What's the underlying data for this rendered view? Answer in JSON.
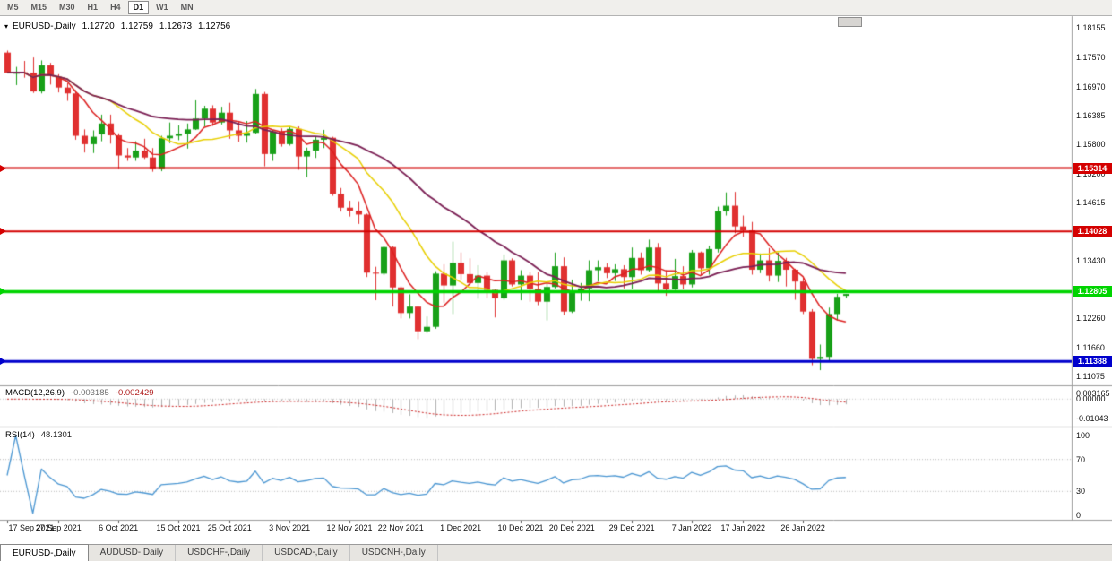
{
  "icons": {
    "chart_dropdown": "▾"
  },
  "toolbar": {
    "timeframes": [
      {
        "label": "M5",
        "active": false
      },
      {
        "label": "M15",
        "active": false
      },
      {
        "label": "M30",
        "active": false
      },
      {
        "label": "H1",
        "active": false
      },
      {
        "label": "H4",
        "active": false
      },
      {
        "label": "D1",
        "active": true
      },
      {
        "label": "W1",
        "active": false
      },
      {
        "label": "MN",
        "active": false
      }
    ]
  },
  "chart": {
    "title": {
      "symbol": "EURUSD-,Daily",
      "open": "1.12720",
      "high": "1.12759",
      "low": "1.12673",
      "close": "1.12756"
    }
  },
  "chart_data": {
    "type": "candlestick",
    "symbol": "EURUSD",
    "timeframe": "Daily",
    "current_bar": {
      "open": 1.1272,
      "high": 1.12759,
      "low": 1.12673,
      "close": 1.12756
    },
    "price_range": [
      1.1092,
      1.184
    ],
    "price_axis_ticks": [
      "1.18155",
      "1.17570",
      "1.16970",
      "1.16385",
      "1.15800",
      "1.15200",
      "1.14615",
      "1.13430",
      "1.12260",
      "1.11660",
      "1.11075"
    ],
    "x_labels": [
      {
        "i": 0,
        "label": "17 Sep 2021"
      },
      {
        "i": 6,
        "label": "27 Sep 2021"
      },
      {
        "i": 13,
        "label": "6 Oct 2021"
      },
      {
        "i": 20,
        "label": "15 Oct 2021"
      },
      {
        "i": 26,
        "label": "25 Oct 2021"
      },
      {
        "i": 33,
        "label": "3 Nov 2021"
      },
      {
        "i": 40,
        "label": "12 Nov 2021"
      },
      {
        "i": 46,
        "label": "22 Nov 2021"
      },
      {
        "i": 53,
        "label": "1 Dec 2021"
      },
      {
        "i": 60,
        "label": "10 Dec 2021"
      },
      {
        "i": 66,
        "label": "20 Dec 2021"
      },
      {
        "i": 73,
        "label": "29 Dec 2021"
      },
      {
        "i": 80,
        "label": "7 Jan 2022"
      },
      {
        "i": 86,
        "label": "17 Jan 2022"
      },
      {
        "i": 93,
        "label": "26 Jan 2022"
      }
    ],
    "bull_color": "#18a018",
    "bear_color": "#e03030",
    "candles": [
      [
        "2021-09-17",
        1.1766,
        1.177,
        1.1724,
        1.1725
      ],
      [
        "2021-09-20",
        1.1723,
        1.1737,
        1.17,
        1.1726
      ],
      [
        "2021-09-21",
        1.1726,
        1.1749,
        1.1715,
        1.1725
      ],
      [
        "2021-09-22",
        1.1725,
        1.1756,
        1.1684,
        1.1687
      ],
      [
        "2021-09-23",
        1.1687,
        1.175,
        1.1683,
        1.174
      ],
      [
        "2021-09-24",
        1.174,
        1.1745,
        1.1701,
        1.1719
      ],
      [
        "2021-09-27",
        1.1717,
        1.1722,
        1.1685,
        1.1695
      ],
      [
        "2021-09-28",
        1.1695,
        1.1704,
        1.1668,
        1.1683
      ],
      [
        "2021-09-29",
        1.1683,
        1.169,
        1.1589,
        1.1597
      ],
      [
        "2021-09-30",
        1.1597,
        1.161,
        1.1563,
        1.158
      ],
      [
        "2021-10-01",
        1.158,
        1.1608,
        1.1562,
        1.1595
      ],
      [
        "2021-10-04",
        1.16,
        1.164,
        1.1586,
        1.1622
      ],
      [
        "2021-10-05",
        1.1622,
        1.164,
        1.1581,
        1.1598
      ],
      [
        "2021-10-06",
        1.1598,
        1.1602,
        1.1529,
        1.1557
      ],
      [
        "2021-10-07",
        1.1557,
        1.1572,
        1.1546,
        1.1553
      ],
      [
        "2021-10-08",
        1.1553,
        1.1586,
        1.1546,
        1.1567
      ],
      [
        "2021-10-11",
        1.1567,
        1.1591,
        1.155,
        1.1553
      ],
      [
        "2021-10-12",
        1.1553,
        1.1572,
        1.1524,
        1.1529
      ],
      [
        "2021-10-13",
        1.1529,
        1.1597,
        1.1525,
        1.1592
      ],
      [
        "2021-10-14",
        1.1592,
        1.1624,
        1.1582,
        1.1597
      ],
      [
        "2021-10-15",
        1.1597,
        1.1618,
        1.1588,
        1.1601
      ],
      [
        "2021-10-18",
        1.1601,
        1.1622,
        1.1571,
        1.161
      ],
      [
        "2021-10-19",
        1.161,
        1.1669,
        1.1609,
        1.1632
      ],
      [
        "2021-10-20",
        1.1632,
        1.1658,
        1.1616,
        1.1652
      ],
      [
        "2021-10-21",
        1.1652,
        1.1659,
        1.1617,
        1.1624
      ],
      [
        "2021-10-22",
        1.1624,
        1.1656,
        1.162,
        1.1644
      ],
      [
        "2021-10-25",
        1.1644,
        1.1664,
        1.1591,
        1.1608
      ],
      [
        "2021-10-26",
        1.1608,
        1.1626,
        1.1585,
        1.1597
      ],
      [
        "2021-10-27",
        1.1597,
        1.1627,
        1.1583,
        1.1603
      ],
      [
        "2021-10-28",
        1.1603,
        1.1692,
        1.1601,
        1.1682
      ],
      [
        "2021-10-29",
        1.1682,
        1.1686,
        1.1535,
        1.156
      ],
      [
        "2021-11-01",
        1.156,
        1.1609,
        1.1546,
        1.1606
      ],
      [
        "2021-11-02",
        1.1606,
        1.1612,
        1.1575,
        1.158
      ],
      [
        "2021-11-03",
        1.158,
        1.1616,
        1.1577,
        1.1611
      ],
      [
        "2021-11-04",
        1.1611,
        1.1616,
        1.1528,
        1.1555
      ],
      [
        "2021-11-05",
        1.1555,
        1.1573,
        1.1513,
        1.1567
      ],
      [
        "2021-11-08",
        1.1567,
        1.1595,
        1.1552,
        1.1589
      ],
      [
        "2021-11-09",
        1.1589,
        1.1609,
        1.1572,
        1.1593
      ],
      [
        "2021-11-10",
        1.1593,
        1.1595,
        1.1475,
        1.1479
      ],
      [
        "2021-11-11",
        1.1479,
        1.1491,
        1.1443,
        1.1451
      ],
      [
        "2021-11-12",
        1.1451,
        1.1465,
        1.1433,
        1.1445
      ],
      [
        "2021-11-15",
        1.1445,
        1.1464,
        1.1418,
        1.1437
      ],
      [
        "2021-11-16",
        1.1437,
        1.1439,
        1.131,
        1.1319
      ],
      [
        "2021-11-17",
        1.1319,
        1.1331,
        1.1263,
        1.1317
      ],
      [
        "2021-11-18",
        1.1317,
        1.1374,
        1.1314,
        1.1371
      ],
      [
        "2021-11-19",
        1.1371,
        1.1373,
        1.125,
        1.1289
      ],
      [
        "2021-11-22",
        1.1289,
        1.1291,
        1.1226,
        1.1237
      ],
      [
        "2021-11-23",
        1.1237,
        1.1275,
        1.1226,
        1.125
      ],
      [
        "2021-11-24",
        1.125,
        1.1252,
        1.1184,
        1.12
      ],
      [
        "2021-11-25",
        1.12,
        1.123,
        1.1196,
        1.1209
      ],
      [
        "2021-11-26",
        1.1209,
        1.1322,
        1.1205,
        1.1317
      ],
      [
        "2021-11-29",
        1.1317,
        1.1336,
        1.1258,
        1.1293
      ],
      [
        "2021-11-30",
        1.1293,
        1.1382,
        1.1235,
        1.1339
      ],
      [
        "2021-12-01",
        1.1339,
        1.136,
        1.1305,
        1.1316
      ],
      [
        "2021-12-02",
        1.1316,
        1.1348,
        1.1293,
        1.1298
      ],
      [
        "2021-12-03",
        1.1298,
        1.1334,
        1.1266,
        1.1313
      ],
      [
        "2021-12-06",
        1.1313,
        1.132,
        1.1267,
        1.1284
      ],
      [
        "2021-12-07",
        1.1284,
        1.1285,
        1.1228,
        1.1267
      ],
      [
        "2021-12-08",
        1.1267,
        1.1356,
        1.1264,
        1.1344
      ],
      [
        "2021-12-09",
        1.1344,
        1.1348,
        1.1291,
        1.1295
      ],
      [
        "2021-12-10",
        1.1295,
        1.1324,
        1.1263,
        1.1313
      ],
      [
        "2021-12-13",
        1.1313,
        1.132,
        1.126,
        1.1286
      ],
      [
        "2021-12-14",
        1.1286,
        1.132,
        1.1253,
        1.126
      ],
      [
        "2021-12-15",
        1.126,
        1.1297,
        1.1222,
        1.129
      ],
      [
        "2021-12-16",
        1.129,
        1.136,
        1.1287,
        1.1332
      ],
      [
        "2021-12-17",
        1.1332,
        1.135,
        1.1233,
        1.124
      ],
      [
        "2021-12-20",
        1.124,
        1.1305,
        1.1237,
        1.1278
      ],
      [
        "2021-12-21",
        1.1278,
        1.1298,
        1.1262,
        1.1287
      ],
      [
        "2021-12-22",
        1.1287,
        1.1344,
        1.1261,
        1.1324
      ],
      [
        "2021-12-23",
        1.1324,
        1.1344,
        1.1301,
        1.133
      ],
      [
        "2021-12-24",
        1.133,
        1.1338,
        1.1308,
        1.1318
      ],
      [
        "2021-12-27",
        1.1318,
        1.1336,
        1.1302,
        1.1326
      ],
      [
        "2021-12-28",
        1.1326,
        1.1334,
        1.1287,
        1.131
      ],
      [
        "2021-12-29",
        1.131,
        1.137,
        1.1286,
        1.1349
      ],
      [
        "2021-12-30",
        1.1349,
        1.136,
        1.1315,
        1.1324
      ],
      [
        "2021-12-31",
        1.1324,
        1.1386,
        1.1321,
        1.137
      ],
      [
        "2022-01-03",
        1.137,
        1.1379,
        1.1279,
        1.1297
      ],
      [
        "2022-01-04",
        1.1297,
        1.1324,
        1.1272,
        1.1285
      ],
      [
        "2022-01-05",
        1.1285,
        1.1347,
        1.1284,
        1.1312
      ],
      [
        "2022-01-06",
        1.1312,
        1.1332,
        1.1285,
        1.1295
      ],
      [
        "2022-01-07",
        1.1295,
        1.1365,
        1.1289,
        1.136
      ],
      [
        "2022-01-10",
        1.136,
        1.1362,
        1.1313,
        1.1328
      ],
      [
        "2022-01-11",
        1.1328,
        1.1374,
        1.1315,
        1.1367
      ],
      [
        "2022-01-12",
        1.1367,
        1.1453,
        1.136,
        1.1444
      ],
      [
        "2022-01-13",
        1.1444,
        1.1482,
        1.1435,
        1.1455
      ],
      [
        "2022-01-14",
        1.1455,
        1.1483,
        1.1399,
        1.1413
      ],
      [
        "2022-01-17",
        1.1413,
        1.1435,
        1.1392,
        1.1405
      ],
      [
        "2022-01-18",
        1.1405,
        1.1422,
        1.1315,
        1.1325
      ],
      [
        "2022-01-19",
        1.1325,
        1.1358,
        1.1318,
        1.1344
      ],
      [
        "2022-01-20",
        1.1344,
        1.1369,
        1.1301,
        1.1313
      ],
      [
        "2022-01-21",
        1.1313,
        1.136,
        1.13,
        1.1343
      ],
      [
        "2022-01-24",
        1.1343,
        1.1349,
        1.1291,
        1.1325
      ],
      [
        "2022-01-25",
        1.1325,
        1.1327,
        1.1264,
        1.1301
      ],
      [
        "2022-01-26",
        1.1301,
        1.131,
        1.1235,
        1.124
      ],
      [
        "2022-01-27",
        1.124,
        1.1245,
        1.1131,
        1.1144
      ],
      [
        "2022-01-28",
        1.1144,
        1.1173,
        1.1121,
        1.1148
      ],
      [
        "2022-01-31",
        1.1148,
        1.1248,
        1.1141,
        1.1235
      ],
      [
        "2022-02-01",
        1.1235,
        1.1276,
        1.1222,
        1.127
      ],
      [
        "2022-02-02",
        1.1272,
        1.12759,
        1.12673,
        1.12756
      ]
    ],
    "moving_averages": [
      {
        "name": "ma-fast",
        "period": 6,
        "color": "#dd2020"
      },
      {
        "name": "ma-mid",
        "period": 13,
        "color": "#e8cf00"
      },
      {
        "name": "ma-slow",
        "period": 26,
        "color": "#7b1f54"
      }
    ],
    "horizontal_lines": [
      {
        "price": 1.15314,
        "label": "1.15314",
        "color": "#d40000",
        "width": 2
      },
      {
        "price": 1.14028,
        "label": "1.14028",
        "color": "#d40000",
        "width": 2
      },
      {
        "price": 1.12805,
        "label": "1.12805",
        "color": "#00d400",
        "width": 3.5
      },
      {
        "price": 1.11388,
        "label": "1.11388",
        "color": "#0000cc",
        "width": 3
      }
    ],
    "indicators": {
      "macd": {
        "label": "MACD(12,26,9)",
        "value_main": "-0.003185",
        "value_signal": "-0.002429",
        "fast": 12,
        "slow": 26,
        "signal": 9,
        "range": [
          0.007,
          -0.0145
        ],
        "axis_ticks": [
          "0.003165",
          "0.00000",
          "-0.01043"
        ],
        "histogram_color": "#b0b0b0",
        "signal_color": "#cc2222"
      },
      "rsi": {
        "label": "RSI(14)",
        "value": "48.1301",
        "period": 14,
        "levels": [
          70,
          30
        ],
        "axis_ticks": [
          100,
          70,
          30,
          0
        ],
        "line_color": "#4a96d2"
      }
    }
  },
  "bottom_tabs": [
    {
      "label": "EURUSD-,Daily",
      "active": true
    },
    {
      "label": "AUDUSD-,Daily",
      "active": false
    },
    {
      "label": "USDCHF-,Daily",
      "active": false
    },
    {
      "label": "USDCAD-,Daily",
      "active": false
    },
    {
      "label": "USDCNH-,Daily",
      "active": false
    }
  ]
}
